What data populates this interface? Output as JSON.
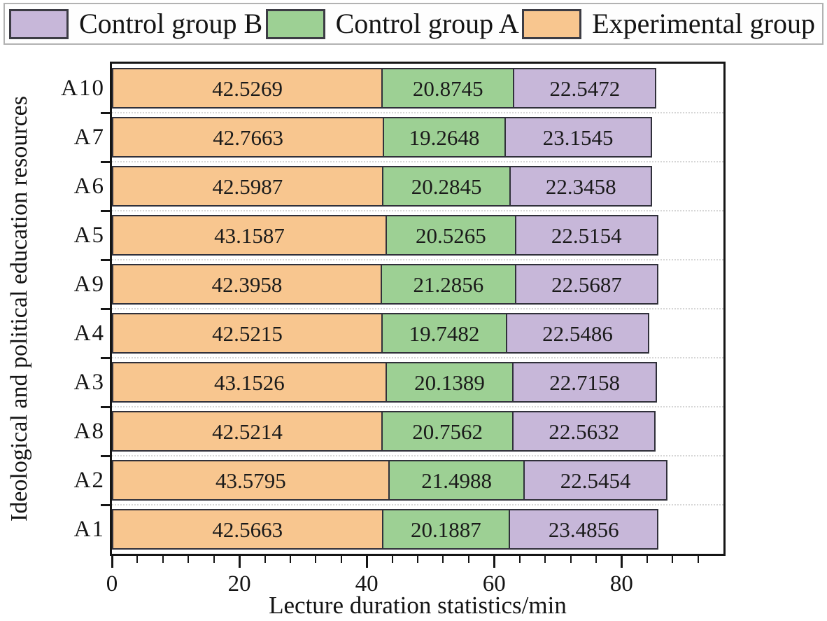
{
  "legend": {
    "items": [
      {
        "label": "Control group B",
        "color": "#c7b7d9"
      },
      {
        "label": "Control group A",
        "color": "#9dd094"
      },
      {
        "label": "Experimental group",
        "color": "#f8c68f"
      }
    ]
  },
  "chart_data": {
    "type": "bar",
    "orientation": "horizontal",
    "stacked": true,
    "title": "",
    "xlabel": "Lecture duration statistics/min",
    "ylabel": "Ideological and political education resources",
    "categories": [
      "A10",
      "A7",
      "A6",
      "A5",
      "A9",
      "A4",
      "A3",
      "A8",
      "A2",
      "A1"
    ],
    "series": [
      {
        "name": "Experimental group",
        "color": "#f8c68f",
        "values": [
          42.5269,
          42.7663,
          42.5987,
          43.1587,
          42.3958,
          42.5215,
          43.1526,
          42.5214,
          43.5795,
          42.5663
        ]
      },
      {
        "name": "Control group A",
        "color": "#9dd094",
        "values": [
          20.8745,
          19.2648,
          20.2845,
          20.5265,
          21.2856,
          19.7482,
          20.1389,
          20.7562,
          21.4988,
          20.1887
        ]
      },
      {
        "name": "Control group B",
        "color": "#c7b7d9",
        "values": [
          22.5472,
          23.1545,
          22.3458,
          22.5154,
          22.5687,
          22.5486,
          22.7158,
          22.5632,
          22.5454,
          23.4856
        ]
      }
    ],
    "xlim": [
      0,
      96
    ],
    "x_major_ticks": [
      0,
      20,
      40,
      60,
      80
    ],
    "x_minor_tick_step": 4,
    "grid": "dotted horizontal lines between categories",
    "legend_position": "top",
    "value_label_decimals": 4
  }
}
